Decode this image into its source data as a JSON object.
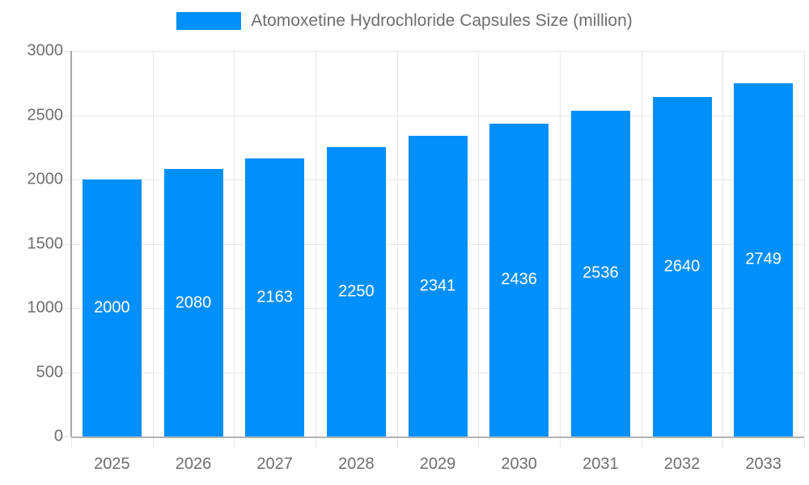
{
  "chart_data": {
    "type": "bar",
    "title": "Atomoxetine Hydrochloride Capsules Size (million)",
    "categories": [
      "2025",
      "2026",
      "2027",
      "2028",
      "2029",
      "2030",
      "2031",
      "2032",
      "2033"
    ],
    "values": [
      2000,
      2080,
      2163,
      2250,
      2341,
      2436,
      2536,
      2640,
      2749
    ],
    "xlabel": "",
    "ylabel": "",
    "ylim": [
      0,
      3000
    ],
    "ytick_step": 500,
    "grid": true,
    "legend_position": "top",
    "bar_labels_inside": true
  },
  "colors": {
    "bar": "#008FFB",
    "bar_label": "#ffffff",
    "axis_text": "#6e6e6e",
    "gridline": "#e7e7e7",
    "axis_line": "#b3b3b3",
    "y_axis_line": "#a6a6a6"
  }
}
